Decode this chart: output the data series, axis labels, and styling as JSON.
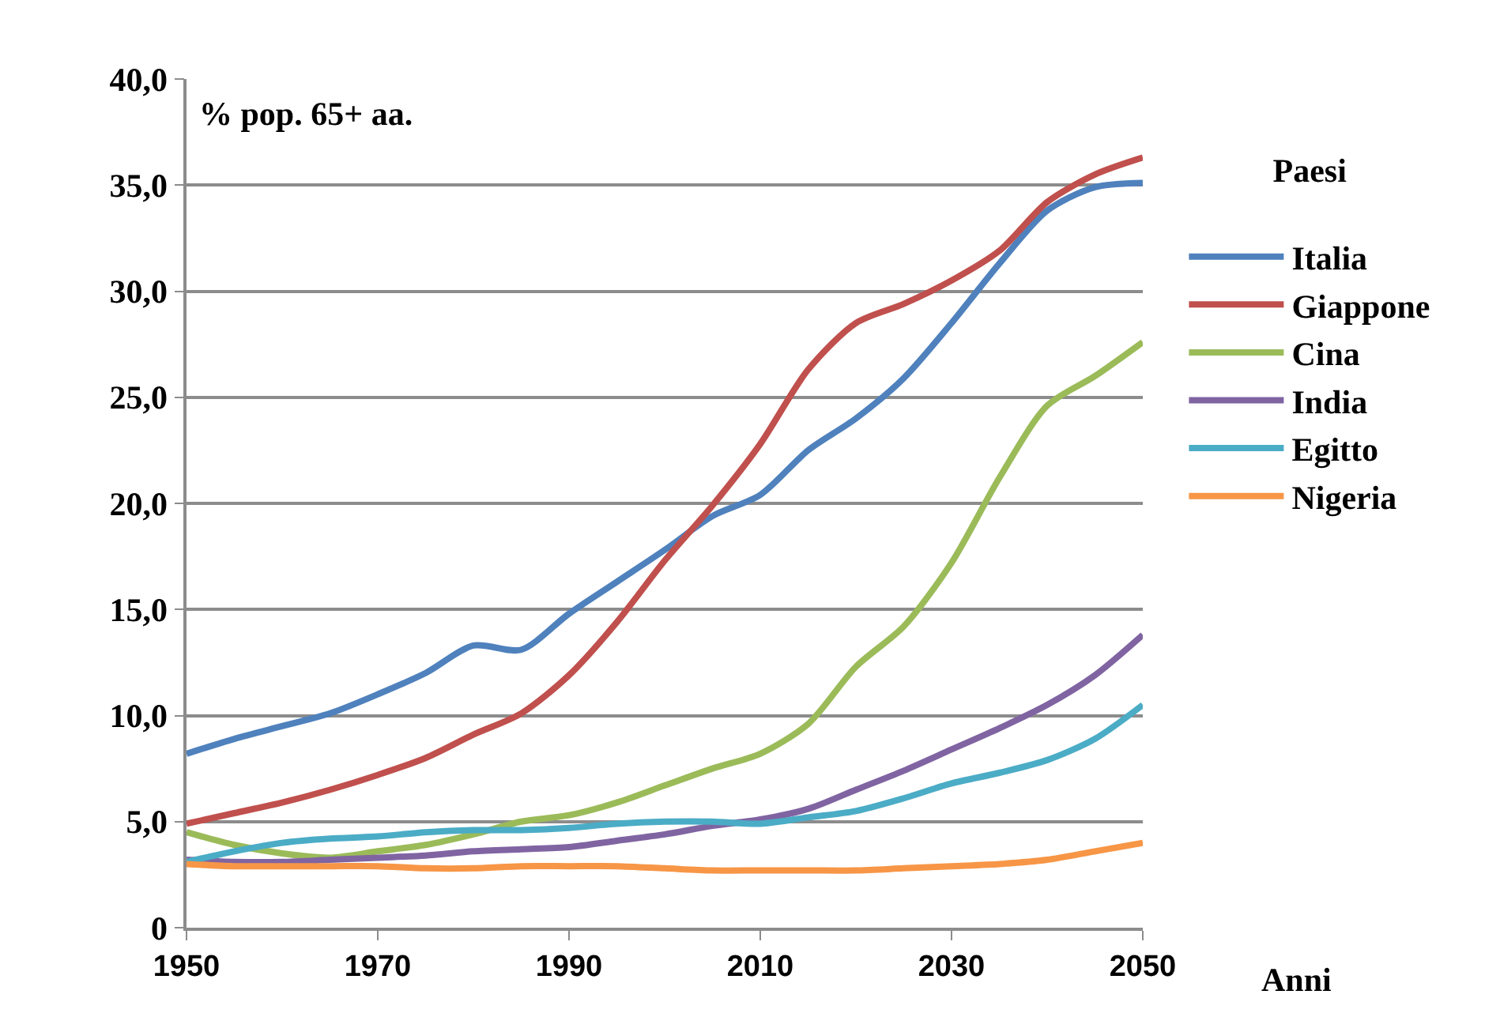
{
  "chart_data": {
    "type": "line",
    "ylabel": "% pop. 65+ aa.",
    "xlabel": "Anni",
    "legend_title": "Paesi",
    "legend": "right",
    "grid": "y",
    "marker": "none",
    "line_style": "solid",
    "x": [
      1950,
      1955,
      1960,
      1965,
      1970,
      1975,
      1980,
      1985,
      1990,
      1995,
      2000,
      2005,
      2010,
      2015,
      2020,
      2025,
      2030,
      2035,
      2040,
      2045,
      2050
    ],
    "xlim": [
      1950,
      2050
    ],
    "xticks": [
      1950,
      1970,
      1990,
      2010,
      2030,
      2050
    ],
    "ylim": [
      0,
      40
    ],
    "yticks": [
      {
        "value": 0,
        "label": "0"
      },
      {
        "value": 5,
        "label": "5,0"
      },
      {
        "value": 10,
        "label": "10,0"
      },
      {
        "value": 15,
        "label": "15,0"
      },
      {
        "value": 20,
        "label": "20,0"
      },
      {
        "value": 25,
        "label": "25,0"
      },
      {
        "value": 30,
        "label": "30,0"
      },
      {
        "value": 35,
        "label": "35,0"
      },
      {
        "value": 40,
        "label": "40,0"
      }
    ],
    "series": [
      {
        "name": "Italia",
        "color": "#4f81bd",
        "values": [
          8.2,
          8.9,
          9.5,
          10.1,
          11.0,
          12.0,
          13.3,
          13.1,
          14.8,
          16.3,
          17.8,
          19.4,
          20.4,
          22.5,
          24.0,
          25.9,
          28.5,
          31.3,
          33.8,
          34.9,
          35.1
        ]
      },
      {
        "name": "Giappone",
        "color": "#c0504d",
        "values": [
          4.9,
          5.4,
          5.9,
          6.5,
          7.2,
          8.0,
          9.1,
          10.1,
          11.9,
          14.4,
          17.3,
          19.9,
          22.8,
          26.3,
          28.5,
          29.4,
          30.5,
          31.9,
          34.2,
          35.5,
          36.3
        ]
      },
      {
        "name": "Cina",
        "color": "#9bbb59",
        "values": [
          4.5,
          3.9,
          3.5,
          3.3,
          3.6,
          3.9,
          4.4,
          5.0,
          5.3,
          5.9,
          6.7,
          7.5,
          8.2,
          9.6,
          12.3,
          14.2,
          17.2,
          21.2,
          24.6,
          26.0,
          27.6
        ]
      },
      {
        "name": "India",
        "color": "#8064a2",
        "values": [
          3.2,
          3.1,
          3.1,
          3.2,
          3.3,
          3.4,
          3.6,
          3.7,
          3.8,
          4.1,
          4.4,
          4.8,
          5.1,
          5.6,
          6.5,
          7.4,
          8.4,
          9.4,
          10.5,
          11.9,
          13.8
        ]
      },
      {
        "name": "Egitto",
        "color": "#4bacc6",
        "values": [
          3.1,
          3.6,
          4.0,
          4.2,
          4.3,
          4.5,
          4.6,
          4.6,
          4.7,
          4.9,
          5.0,
          5.0,
          4.9,
          5.2,
          5.5,
          6.1,
          6.8,
          7.3,
          7.9,
          8.9,
          10.5
        ]
      },
      {
        "name": "Nigeria",
        "color": "#f79646",
        "values": [
          3.0,
          2.9,
          2.9,
          2.9,
          2.9,
          2.8,
          2.8,
          2.9,
          2.9,
          2.9,
          2.8,
          2.7,
          2.7,
          2.7,
          2.7,
          2.8,
          2.9,
          3.0,
          3.2,
          3.6,
          4.0
        ]
      }
    ]
  }
}
